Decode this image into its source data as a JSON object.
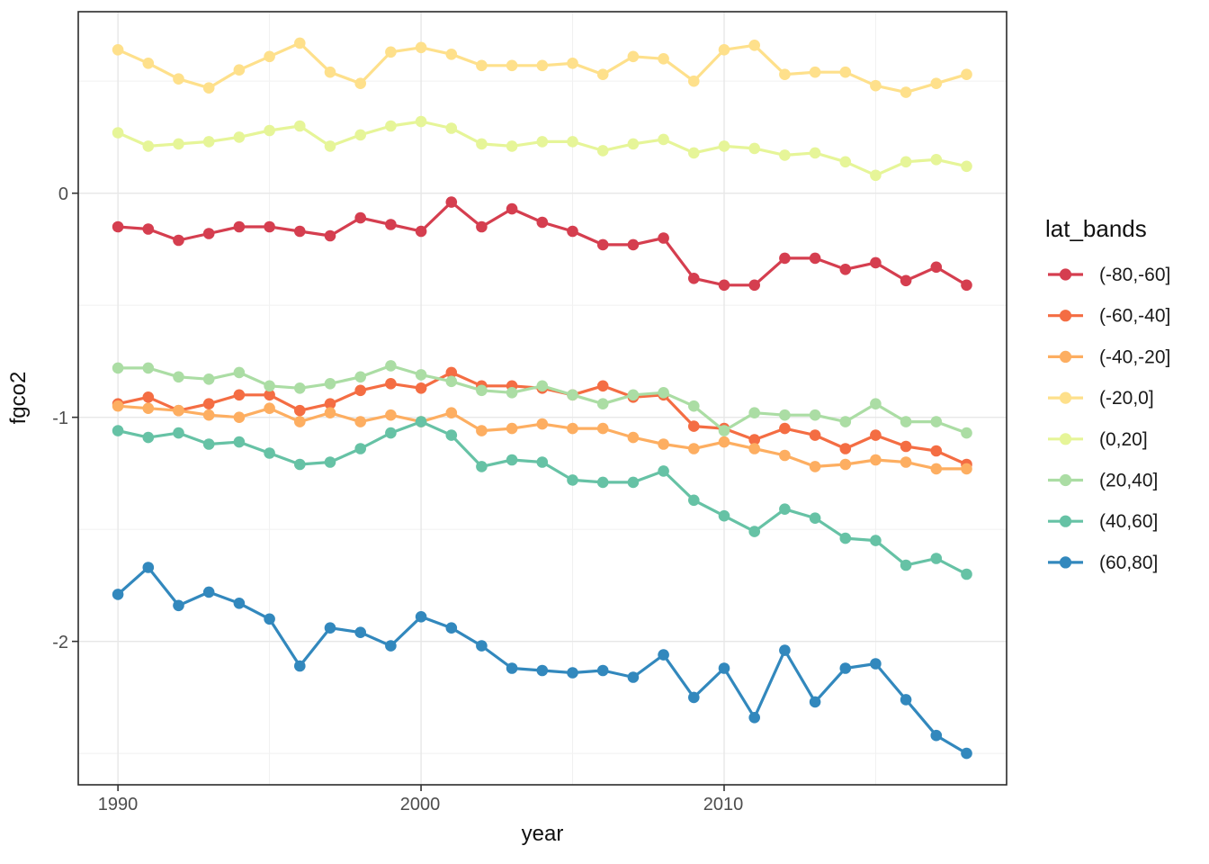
{
  "chart_data": {
    "type": "line",
    "title": "",
    "xlabel": "year",
    "ylabel": "fgco2",
    "legend_title": "lat_bands",
    "legend_position": "right",
    "grid": true,
    "x": [
      1990,
      1991,
      1992,
      1993,
      1994,
      1995,
      1996,
      1997,
      1998,
      1999,
      2000,
      2001,
      2002,
      2003,
      2004,
      2005,
      2006,
      2007,
      2008,
      2009,
      2010,
      2011,
      2012,
      2013,
      2014,
      2015,
      2016,
      2017,
      2018
    ],
    "xlim": [
      1988.69,
      2019.32
    ],
    "ylim": [
      0.81,
      -2.64
    ],
    "x_ticks": [
      1990,
      2000,
      2010
    ],
    "x_tick_labels": [
      "1990",
      "2000",
      "2010"
    ],
    "x_minor_ticks": [
      1995,
      2005,
      2015
    ],
    "y_ticks": [
      0,
      -1,
      -2
    ],
    "y_tick_labels": [
      "0",
      "-1",
      "-2"
    ],
    "y_minor_ticks": [
      0.5,
      -0.5,
      -1.5,
      -2.5
    ],
    "series": [
      {
        "name": "(-80,-60]",
        "color": "#D53E4F",
        "values": [
          -0.15,
          -0.16,
          -0.21,
          -0.18,
          -0.15,
          -0.15,
          -0.17,
          -0.19,
          -0.11,
          -0.14,
          -0.17,
          -0.04,
          -0.15,
          -0.07,
          -0.13,
          -0.17,
          -0.23,
          -0.23,
          -0.2,
          -0.38,
          -0.41,
          -0.41,
          -0.29,
          -0.29,
          -0.34,
          -0.31,
          -0.39,
          -0.33,
          -0.41
        ]
      },
      {
        "name": "(-60,-40]",
        "color": "#F46D43",
        "values": [
          -0.94,
          -0.91,
          -0.97,
          -0.94,
          -0.9,
          -0.9,
          -0.97,
          -0.94,
          -0.88,
          -0.85,
          -0.87,
          -0.8,
          -0.86,
          -0.86,
          -0.87,
          -0.9,
          -0.86,
          -0.91,
          -0.9,
          -1.04,
          -1.05,
          -1.1,
          -1.05,
          -1.08,
          -1.14,
          -1.08,
          -1.13,
          -1.15,
          -1.21
        ]
      },
      {
        "name": "(-40,-20]",
        "color": "#FDAE61",
        "values": [
          -0.95,
          -0.96,
          -0.97,
          -0.99,
          -1.0,
          -0.96,
          -1.02,
          -0.98,
          -1.02,
          -0.99,
          -1.02,
          -0.98,
          -1.06,
          -1.05,
          -1.03,
          -1.05,
          -1.05,
          -1.09,
          -1.12,
          -1.14,
          -1.11,
          -1.14,
          -1.17,
          -1.22,
          -1.21,
          -1.19,
          -1.2,
          -1.23,
          -1.23
        ]
      },
      {
        "name": "(-20,0]",
        "color": "#FEE08B",
        "values": [
          0.64,
          0.58,
          0.51,
          0.47,
          0.55,
          0.61,
          0.67,
          0.54,
          0.49,
          0.63,
          0.65,
          0.62,
          0.57,
          0.57,
          0.57,
          0.58,
          0.53,
          0.61,
          0.6,
          0.5,
          0.64,
          0.66,
          0.53,
          0.54,
          0.54,
          0.48,
          0.45,
          0.49,
          0.53
        ]
      },
      {
        "name": "(0,20]",
        "color": "#E6F598",
        "values": [
          0.27,
          0.21,
          0.22,
          0.23,
          0.25,
          0.28,
          0.3,
          0.21,
          0.26,
          0.3,
          0.32,
          0.29,
          0.22,
          0.21,
          0.23,
          0.23,
          0.19,
          0.22,
          0.24,
          0.18,
          0.21,
          0.2,
          0.17,
          0.18,
          0.14,
          0.08,
          0.14,
          0.15,
          0.12
        ]
      },
      {
        "name": "(20,40]",
        "color": "#ABDDA4",
        "values": [
          -0.78,
          -0.78,
          -0.82,
          -0.83,
          -0.8,
          -0.86,
          -0.87,
          -0.85,
          -0.82,
          -0.77,
          -0.81,
          -0.84,
          -0.88,
          -0.89,
          -0.86,
          -0.9,
          -0.94,
          -0.9,
          -0.89,
          -0.95,
          -1.06,
          -0.98,
          -0.99,
          -0.99,
          -1.02,
          -0.94,
          -1.02,
          -1.02,
          -1.07
        ]
      },
      {
        "name": "(40,60]",
        "color": "#66C2A5",
        "values": [
          -1.06,
          -1.09,
          -1.07,
          -1.12,
          -1.11,
          -1.16,
          -1.21,
          -1.2,
          -1.14,
          -1.07,
          -1.02,
          -1.08,
          -1.22,
          -1.19,
          -1.2,
          -1.28,
          -1.29,
          -1.29,
          -1.24,
          -1.37,
          -1.44,
          -1.51,
          -1.41,
          -1.45,
          -1.54,
          -1.55,
          -1.66,
          -1.63,
          -1.7
        ]
      },
      {
        "name": "(60,80]",
        "color": "#3288BD",
        "values": [
          -1.79,
          -1.67,
          -1.84,
          -1.78,
          -1.83,
          -1.9,
          -2.11,
          -1.94,
          -1.96,
          -2.02,
          -1.89,
          -1.94,
          -2.02,
          -2.12,
          -2.13,
          -2.14,
          -2.13,
          -2.16,
          -2.06,
          -2.25,
          -2.12,
          -2.34,
          -2.04,
          -2.27,
          -2.12,
          -2.1,
          -2.26,
          -2.42,
          -2.5
        ]
      }
    ],
    "style": {
      "panel_border_color": "#2b2b2b",
      "grid_major_color": "#e7e7e7",
      "grid_minor_color": "#f1f1f1",
      "tick_color": "#333333",
      "tick_label_color": "#4d4d4d",
      "background": "#ffffff"
    }
  }
}
